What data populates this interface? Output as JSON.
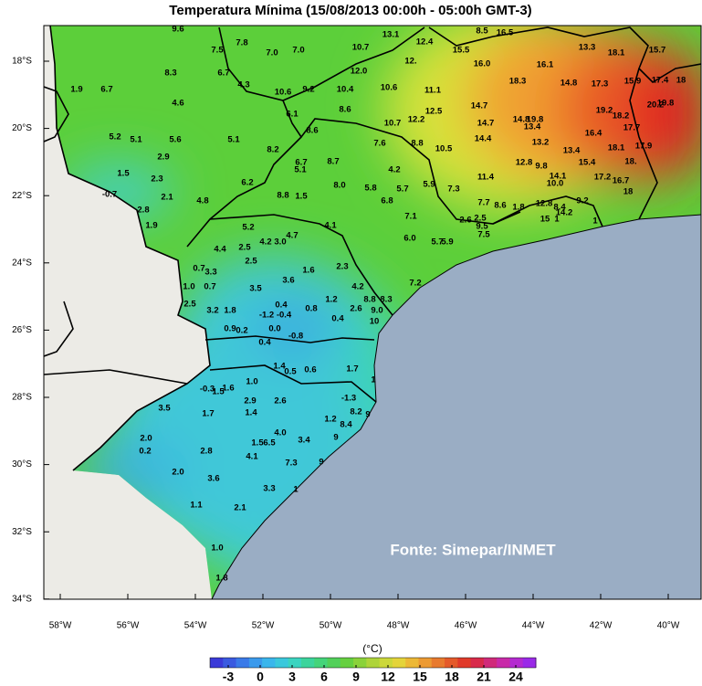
{
  "header": {
    "title": "Temperatura Mínima (15/08/2013 00:00h - 05:00h GMT-3)"
  },
  "map": {
    "lat_labels": [
      "18°S",
      "20°S",
      "22°S",
      "24°S",
      "26°S",
      "28°S",
      "30°S",
      "32°S",
      "34°S"
    ],
    "lon_labels": [
      "58°W",
      "56°W",
      "54°W",
      "52°W",
      "50°W",
      "48°W",
      "46°W",
      "44°W",
      "42°W",
      "40°W"
    ],
    "stations": [
      "9.6",
      "13.1",
      "8.5",
      "16.5",
      "7.5",
      "7.8",
      "7.0",
      "7.0",
      "10.7",
      "12.4",
      "15.5",
      "12.",
      "13.3",
      "15.7",
      "1.9",
      "6.7",
      "8.3",
      "6.7",
      "4.3",
      "12.0",
      "16.0",
      "16.1",
      "18.1",
      "18.3",
      "14.8",
      "17.3",
      "15.9",
      "17.4",
      "18",
      "4.6",
      "10.6",
      "9.2",
      "10.4",
      "10.6",
      "11.1",
      "6.1",
      "8.6",
      "10.7",
      "12.2",
      "12.5",
      "14.7",
      "19.2",
      "18.2",
      "20.2",
      "19.8",
      "14.7",
      "14.8",
      "19.8",
      "13.4",
      "5.2",
      "5.1",
      "5.6",
      "5.1",
      "8.6",
      "7.6",
      "8.8",
      "10.5",
      "14.4",
      "13.2",
      "16.4",
      "2.9",
      "8.2",
      "6.7",
      "5.1",
      "8.7",
      "12.8",
      "9.8",
      "13.4",
      "15.4",
      "18.1",
      "17.7",
      "17.9",
      "18.",
      "1.5",
      "2.3",
      "4.2",
      "11.4",
      "5.8",
      "5.7",
      "5.9",
      "14.1",
      "10.0",
      "17.2",
      "16.7",
      "18",
      "-0.7",
      "2.1",
      "4.8",
      "6.2",
      "8.8",
      "1.5",
      "8.0",
      "6.8",
      "7.3",
      "9.2",
      "2.8",
      "7.1",
      "7.7",
      "8.6",
      "1.8",
      "12.8",
      "8.4",
      "14.2",
      "15",
      "1",
      "1",
      "1.9",
      "5.2",
      "4.2",
      "3.0",
      "4.7",
      "4.1",
      "2.6",
      "2.5",
      "9.5",
      "7.5",
      "6.0",
      "5.7",
      "5.9",
      "4.4",
      "2.5",
      "2.5",
      "1.6",
      "2.3",
      "0.7",
      "3.3",
      "1.0",
      "0.7",
      "3.5",
      "3.6",
      "4.2",
      "7.2",
      "2.5",
      "3.2",
      "1.8",
      "0.4",
      "1.2",
      "8.8",
      "8.3",
      "-1.2",
      "-0.4",
      "0.8",
      "2.6",
      "9.0",
      "0.4",
      "10",
      "0.9",
      "0.2",
      "0.0",
      "-0.8",
      "0.4",
      "1.4",
      "0.5",
      "0.6",
      "1.7",
      "1",
      "1.0",
      "-0.3",
      "1.6",
      "1.5",
      "-1.3",
      "2.9",
      "2.6",
      "3.5",
      "1.7",
      "1.4",
      "8.2",
      "1.2",
      "8.4",
      "9",
      "4.0",
      "2.0",
      "1.5",
      "6.5",
      "3.4",
      "9",
      "0.2",
      "2.8",
      "4.1",
      "7.3",
      "9",
      "2.0",
      "3.6",
      "3.3",
      "1",
      "1.1",
      "2.1",
      "1.0",
      "1.8"
    ],
    "source": "Fonte: Simepar/INMET"
  },
  "colorbar": {
    "unit": "(°C)",
    "ticks": [
      -3,
      0,
      3,
      6,
      9,
      12,
      15,
      18,
      21,
      24
    ]
  }
}
